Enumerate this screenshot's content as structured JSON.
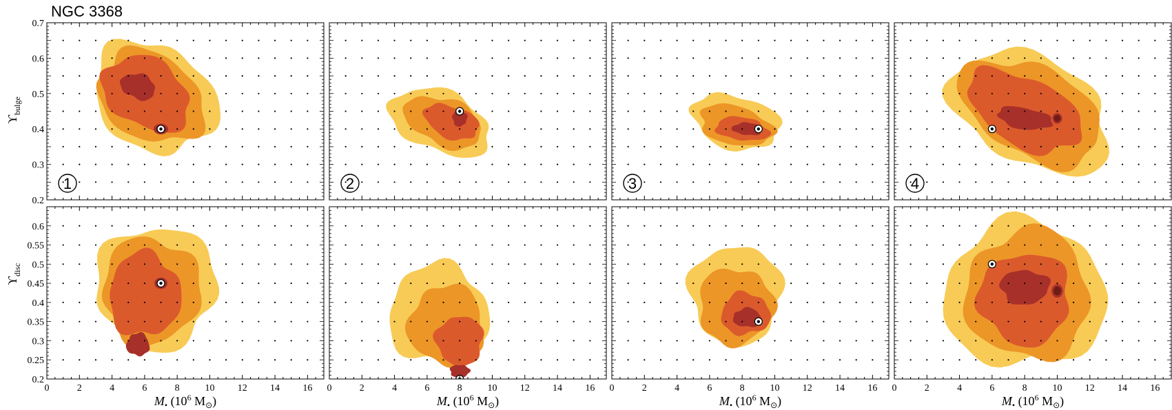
{
  "title": "NGC 3368",
  "x_axis_label": {
    "symbol": "M",
    "sub": "•",
    "units_pre": "(10",
    "units_exp": "6",
    "units_post": " M",
    "units_sun": "⊙",
    "units_close": ")"
  },
  "y_axis_labels": [
    {
      "symbol": "ϒ",
      "sub": "bulge"
    },
    {
      "symbol": "ϒ",
      "sub": "disc"
    }
  ],
  "colors": {
    "level1": "#F8CB56",
    "level2": "#EC9627",
    "level3": "#DB5A2C",
    "level4": "#A7302A",
    "level5": "#6E1D14",
    "grid_dot": "#000000",
    "best_fit": "#ffffff"
  },
  "chart_data": [
    {
      "type": "heatmap",
      "panel": "1",
      "row": "bulge",
      "xlim": [
        0,
        17
      ],
      "ylim": [
        0.2,
        0.7
      ],
      "xticks": [
        0,
        2,
        4,
        6,
        8,
        10,
        12,
        14,
        16
      ],
      "yticks": [
        "0.2",
        "0.3",
        "0.4",
        "0.5",
        "0.6",
        "0.7"
      ],
      "best_fit": {
        "x": 7,
        "y": 0.4
      },
      "levels": [
        {
          "level": 1,
          "center": [
            6.6,
            0.49
          ],
          "extent": [
            8.0,
            0.29
          ],
          "angle": -32,
          "peaks": [
            [
              6.8,
              0.48,
              3.5,
              0.12
            ]
          ]
        },
        {
          "level": 2,
          "center": [
            6.4,
            0.49
          ],
          "extent": [
            6.9,
            0.24
          ],
          "angle": -32,
          "peaks": []
        },
        {
          "level": 3,
          "center": [
            6.1,
            0.5
          ],
          "extent": [
            5.8,
            0.19
          ],
          "angle": -32,
          "peaks": []
        },
        {
          "level": 4,
          "center": [
            5.6,
            0.52
          ],
          "extent": [
            2.2,
            0.07
          ],
          "angle": -20,
          "peaks": [
            [
              7,
              0.4,
              0.9,
              0.03
            ]
          ]
        }
      ]
    },
    {
      "type": "heatmap",
      "panel": "2",
      "row": "bulge",
      "xlim": [
        0,
        17
      ],
      "ylim": [
        0.2,
        0.7
      ],
      "xticks": [
        0,
        2,
        4,
        6,
        8,
        10,
        12,
        14,
        16
      ],
      "yticks": [
        "0.2",
        "0.3",
        "0.4",
        "0.5",
        "0.6",
        "0.7"
      ],
      "best_fit": {
        "x": 8,
        "y": 0.45
      },
      "levels": [
        {
          "level": 1,
          "center": [
            6.8,
            0.42
          ],
          "extent": [
            6.5,
            0.17
          ],
          "angle": -22,
          "peaks": []
        },
        {
          "level": 2,
          "center": [
            7.0,
            0.42
          ],
          "extent": [
            5.0,
            0.13
          ],
          "angle": -22,
          "peaks": []
        },
        {
          "level": 3,
          "center": [
            7.5,
            0.42
          ],
          "extent": [
            3.5,
            0.09
          ],
          "angle": -20,
          "peaks": []
        },
        {
          "level": 4,
          "center": [
            8.0,
            0.43
          ],
          "extent": [
            0.9,
            0.045
          ],
          "angle": 0,
          "peaks": []
        }
      ]
    },
    {
      "type": "heatmap",
      "panel": "3",
      "row": "bulge",
      "xlim": [
        0,
        17
      ],
      "ylim": [
        0.2,
        0.7
      ],
      "xticks": [
        0,
        2,
        4,
        6,
        8,
        10,
        12,
        14,
        16
      ],
      "yticks": [
        "0.2",
        "0.3",
        "0.4",
        "0.5",
        "0.6",
        "0.7"
      ],
      "best_fit": {
        "x": 9,
        "y": 0.4
      },
      "levels": [
        {
          "level": 1,
          "center": [
            7.6,
            0.42
          ],
          "extent": [
            5.5,
            0.15
          ],
          "angle": -14,
          "peaks": []
        },
        {
          "level": 2,
          "center": [
            7.6,
            0.41
          ],
          "extent": [
            4.6,
            0.11
          ],
          "angle": -14,
          "peaks": []
        },
        {
          "level": 3,
          "center": [
            8.0,
            0.4
          ],
          "extent": [
            3.3,
            0.065
          ],
          "angle": -8,
          "peaks": []
        },
        {
          "level": 4,
          "center": [
            8.3,
            0.4
          ],
          "extent": [
            1.8,
            0.035
          ],
          "angle": -5,
          "peaks": []
        }
      ]
    },
    {
      "type": "heatmap",
      "panel": "4",
      "row": "bulge",
      "xlim": [
        0,
        17
      ],
      "ylim": [
        0.2,
        0.7
      ],
      "xticks": [
        0,
        2,
        4,
        6,
        8,
        10,
        12,
        14,
        16
      ],
      "yticks": [
        "0.2",
        "0.3",
        "0.4",
        "0.5",
        "0.6",
        "0.7"
      ],
      "best_fit": {
        "x": 6,
        "y": 0.4
      },
      "levels": [
        {
          "level": 1,
          "center": [
            8.4,
            0.45
          ],
          "extent": [
            10.5,
            0.3
          ],
          "angle": -28,
          "peaks": []
        },
        {
          "level": 2,
          "center": [
            8.4,
            0.45
          ],
          "extent": [
            9.4,
            0.25
          ],
          "angle": -28,
          "peaks": []
        },
        {
          "level": 3,
          "center": [
            8.0,
            0.45
          ],
          "extent": [
            7.6,
            0.19
          ],
          "angle": -28,
          "peaks": []
        },
        {
          "level": 4,
          "center": [
            8.0,
            0.43
          ],
          "extent": [
            3.4,
            0.06
          ],
          "angle": -10,
          "peaks": [
            [
              10,
              0.43,
              0.6,
              0.03
            ]
          ]
        }
      ]
    },
    {
      "type": "heatmap",
      "panel": "1",
      "row": "disc",
      "xlim": [
        0,
        17
      ],
      "ylim": [
        0.2,
        0.65
      ],
      "xticks": [
        0,
        2,
        4,
        6,
        8,
        10,
        12,
        14,
        16
      ],
      "yticks": [
        "0.2",
        "0.25",
        "0.3",
        "0.35",
        "0.4",
        "0.45",
        "0.5",
        "0.55",
        "0.6"
      ],
      "best_fit": {
        "x": 7,
        "y": 0.45
      },
      "levels": [
        {
          "level": 1,
          "center": [
            6.7,
            0.44
          ],
          "extent": [
            7.4,
            0.32
          ],
          "angle": 0,
          "peaks": []
        },
        {
          "level": 2,
          "center": [
            6.4,
            0.43
          ],
          "extent": [
            6.0,
            0.28
          ],
          "angle": 0,
          "peaks": []
        },
        {
          "level": 3,
          "center": [
            6.0,
            0.42
          ],
          "extent": [
            4.4,
            0.22
          ],
          "angle": 0,
          "peaks": []
        },
        {
          "level": 4,
          "center": [
            5.6,
            0.29
          ],
          "extent": [
            1.4,
            0.06
          ],
          "angle": 0,
          "peaks": [
            [
              7,
              0.45,
              0.8,
              0.03
            ]
          ]
        }
      ]
    },
    {
      "type": "heatmap",
      "panel": "2",
      "row": "disc",
      "xlim": [
        0,
        17
      ],
      "ylim": [
        0.2,
        0.65
      ],
      "xticks": [
        0,
        2,
        4,
        6,
        8,
        10,
        12,
        14,
        16
      ],
      "yticks": [
        "0.2",
        "0.25",
        "0.3",
        "0.35",
        "0.4",
        "0.45",
        "0.5",
        "0.55",
        "0.6"
      ],
      "best_fit": {
        "x": 8,
        "y": 0.2
      },
      "levels": [
        {
          "level": 1,
          "center": [
            6.7,
            0.37
          ],
          "extent": [
            6.1,
            0.26
          ],
          "angle": 0,
          "peaks": []
        },
        {
          "level": 2,
          "center": [
            7.2,
            0.34
          ],
          "extent": [
            4.6,
            0.21
          ],
          "angle": 0,
          "peaks": []
        },
        {
          "level": 3,
          "center": [
            8.0,
            0.3
          ],
          "extent": [
            2.9,
            0.13
          ],
          "angle": 0,
          "peaks": []
        },
        {
          "level": 4,
          "center": [
            8.0,
            0.22
          ],
          "extent": [
            1.2,
            0.035
          ],
          "angle": 0,
          "peaks": []
        }
      ]
    },
    {
      "type": "heatmap",
      "panel": "3",
      "row": "disc",
      "xlim": [
        0,
        17
      ],
      "ylim": [
        0.2,
        0.65
      ],
      "xticks": [
        0,
        2,
        4,
        6,
        8,
        10,
        12,
        14,
        16
      ],
      "yticks": [
        "0.2",
        "0.25",
        "0.3",
        "0.35",
        "0.4",
        "0.45",
        "0.5",
        "0.55",
        "0.6"
      ],
      "best_fit": {
        "x": 9,
        "y": 0.35
      },
      "levels": [
        {
          "level": 1,
          "center": [
            7.6,
            0.42
          ],
          "extent": [
            5.6,
            0.26
          ],
          "angle": 0,
          "peaks": []
        },
        {
          "level": 2,
          "center": [
            7.6,
            0.39
          ],
          "extent": [
            4.6,
            0.2
          ],
          "angle": 0,
          "peaks": []
        },
        {
          "level": 3,
          "center": [
            8.2,
            0.37
          ],
          "extent": [
            3.0,
            0.11
          ],
          "angle": 0,
          "peaks": []
        },
        {
          "level": 4,
          "center": [
            8.3,
            0.36
          ],
          "extent": [
            1.7,
            0.05
          ],
          "angle": 0,
          "peaks": []
        }
      ]
    },
    {
      "type": "heatmap",
      "panel": "4",
      "row": "disc",
      "xlim": [
        0,
        17
      ],
      "ylim": [
        0.2,
        0.65
      ],
      "xticks": [
        0,
        2,
        4,
        6,
        8,
        10,
        12,
        14,
        16
      ],
      "yticks": [
        "0.2",
        "0.25",
        "0.3",
        "0.35",
        "0.4",
        "0.45",
        "0.5",
        "0.55",
        "0.6"
      ],
      "best_fit": {
        "x": 6,
        "y": 0.5
      },
      "levels": [
        {
          "level": 1,
          "center": [
            8.0,
            0.42
          ],
          "extent": [
            10.0,
            0.38
          ],
          "angle": 0,
          "peaks": []
        },
        {
          "level": 2,
          "center": [
            8.2,
            0.42
          ],
          "extent": [
            7.6,
            0.34
          ],
          "angle": 0,
          "peaks": []
        },
        {
          "level": 3,
          "center": [
            8.0,
            0.41
          ],
          "extent": [
            5.6,
            0.24
          ],
          "angle": 0,
          "peaks": []
        },
        {
          "level": 4,
          "center": [
            8.0,
            0.44
          ],
          "extent": [
            3.0,
            0.09
          ],
          "angle": 0,
          "peaks": [
            [
              10,
              0.43,
              0.7,
              0.035
            ]
          ]
        }
      ]
    }
  ],
  "panel_numbers": [
    "1",
    "2",
    "3",
    "4"
  ]
}
